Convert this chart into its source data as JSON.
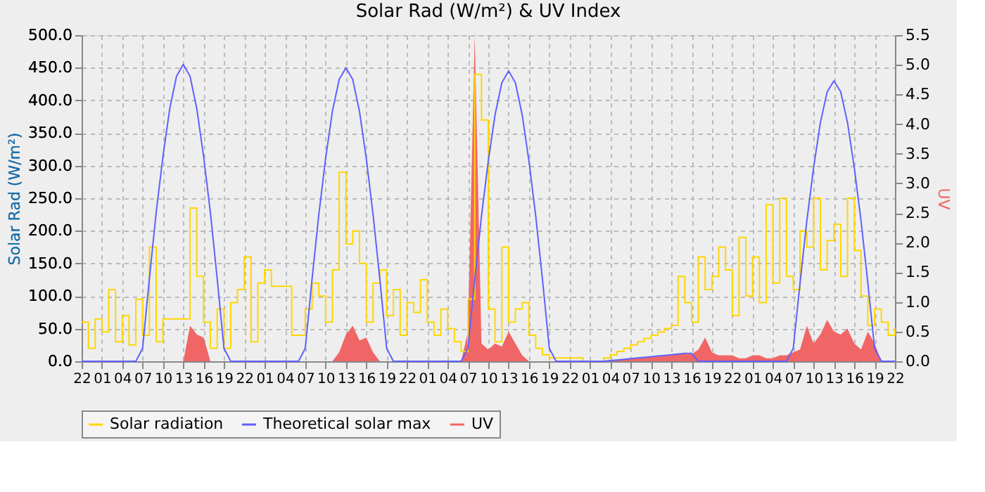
{
  "chart_data": {
    "type": "line",
    "title": "Solar Rad (W/m²) &  UV Index",
    "ylabel": "Solar Rad (W/m²)",
    "y2label": "UV",
    "categories": [
      "22",
      null,
      null,
      "01",
      null,
      null,
      "04",
      null,
      null,
      "07",
      null,
      null,
      "10",
      null,
      null,
      "13",
      null,
      null,
      "16",
      null,
      null,
      "19",
      null,
      null,
      "22",
      null,
      null,
      "01",
      null,
      null,
      "04",
      null,
      null,
      "07",
      null,
      null,
      "10",
      null,
      null,
      "13",
      null,
      null,
      "16",
      null,
      null,
      "19",
      null,
      null,
      "22",
      null,
      null,
      "01",
      null,
      null,
      "04",
      null,
      null,
      "07",
      null,
      null,
      "10",
      null,
      null,
      "13",
      null,
      null,
      "16",
      null,
      null,
      "19",
      null,
      null,
      "22",
      null,
      null,
      "01",
      null,
      null,
      "04",
      null,
      null,
      "07",
      null,
      null,
      "10",
      null,
      null,
      "13",
      null,
      null,
      "16",
      null,
      null,
      "19",
      null,
      null,
      "22",
      null,
      null,
      "01",
      null,
      null,
      "04",
      null,
      null,
      "07",
      null,
      null,
      "10",
      null,
      null,
      "13",
      null,
      null,
      "16",
      null,
      null,
      "19",
      null,
      null,
      "22"
    ],
    "ylim": [
      0,
      500
    ],
    "yticks": [
      {
        "value": 0,
        "label": "0.0"
      },
      {
        "value": 50,
        "label": "50.0"
      },
      {
        "value": 100,
        "label": "100.0"
      },
      {
        "value": 150,
        "label": "150.0"
      },
      {
        "value": 200,
        "label": "200.0"
      },
      {
        "value": 250,
        "label": "250.0"
      },
      {
        "value": 300,
        "label": "300.0"
      },
      {
        "value": 350,
        "label": "350.0"
      },
      {
        "value": 400,
        "label": "400.0"
      },
      {
        "value": 450,
        "label": "450.0"
      },
      {
        "value": 500,
        "label": "500.0"
      }
    ],
    "y2lim": [
      0,
      5.5
    ],
    "y2ticks": [
      {
        "value": 0,
        "label": "0.0"
      },
      {
        "value": 0.5,
        "label": "0.5"
      },
      {
        "value": 1,
        "label": "1.0"
      },
      {
        "value": 1.5,
        "label": "1.5"
      },
      {
        "value": 2,
        "label": "2.0"
      },
      {
        "value": 2.5,
        "label": "2.5"
      },
      {
        "value": 3,
        "label": "3.0"
      },
      {
        "value": 3.5,
        "label": "3.5"
      },
      {
        "value": 4,
        "label": "4.0"
      },
      {
        "value": 4.5,
        "label": "4.5"
      },
      {
        "value": 5,
        "label": "5.0"
      },
      {
        "value": 5.5,
        "label": "5.5"
      }
    ],
    "grid": true,
    "legend": "bottom",
    "series": [
      {
        "name": "Solar radiation",
        "type": "step",
        "color": "#ffd700",
        "values": [
          60,
          20,
          65,
          45,
          110,
          30,
          70,
          25,
          95,
          40,
          175,
          30,
          65,
          65,
          65,
          65,
          235,
          130,
          60,
          20,
          80,
          20,
          90,
          110,
          160,
          30,
          120,
          140,
          115,
          115,
          115,
          40,
          40,
          80,
          120,
          100,
          60,
          140,
          290,
          180,
          200,
          150,
          60,
          120,
          140,
          70,
          110,
          40,
          90,
          75,
          125,
          60,
          40,
          80,
          50,
          30,
          15,
          95,
          440,
          370,
          80,
          30,
          175,
          60,
          80,
          90,
          40,
          20,
          10,
          5,
          5,
          5,
          5,
          5,
          0,
          0,
          0,
          5,
          10,
          15,
          20,
          25,
          30,
          35,
          40,
          45,
          50,
          55,
          130,
          90,
          60,
          160,
          110,
          130,
          175,
          140,
          70,
          190,
          100,
          160,
          90,
          240,
          120,
          250,
          130,
          110,
          200,
          175,
          250,
          140,
          185,
          210,
          130,
          250,
          170,
          100,
          55,
          80,
          60,
          40,
          50
        ]
      },
      {
        "name": "Theoretical solar max",
        "type": "line",
        "color": "#6060ff",
        "values": [
          0,
          0,
          0,
          0,
          0,
          0,
          0,
          0,
          0,
          20,
          127,
          228,
          314,
          387,
          437,
          455,
          437,
          387,
          314,
          228,
          127,
          20,
          0,
          0,
          0,
          0,
          0,
          0,
          0,
          0,
          0,
          0,
          0,
          20,
          126,
          225,
          311,
          383,
          432,
          450,
          432,
          383,
          311,
          225,
          126,
          20,
          0,
          0,
          0,
          0,
          0,
          0,
          0,
          0,
          0,
          0,
          0,
          20,
          125,
          223,
          307,
          378,
          427,
          445,
          427,
          378,
          307,
          223,
          125,
          20,
          0,
          0,
          0,
          0,
          0,
          0,
          0,
          0,
          1,
          2,
          3,
          4,
          5,
          6,
          7,
          8,
          9,
          10,
          11,
          12,
          12,
          0,
          0,
          0,
          0,
          0,
          0,
          0,
          0,
          0,
          0,
          0,
          0,
          0,
          0,
          20,
          120,
          215,
          297,
          366,
          413,
          430,
          413,
          366,
          297,
          215,
          120,
          20,
          0,
          0,
          0
        ]
      },
      {
        "name": "UV",
        "type": "area",
        "axis": "y2",
        "color": "#f06666",
        "values": [
          0,
          0,
          0,
          0,
          0,
          0,
          0,
          0,
          0,
          0,
          0,
          0,
          0,
          0,
          0,
          0,
          0.6,
          0.45,
          0.4,
          0,
          0,
          0,
          0,
          0,
          0,
          0,
          0,
          0,
          0,
          0,
          0,
          0,
          0,
          0,
          0,
          0,
          0,
          0,
          0.15,
          0.45,
          0.6,
          0.35,
          0.4,
          0.15,
          0,
          0,
          0,
          0,
          0,
          0,
          0,
          0,
          0,
          0,
          0,
          0,
          0,
          0.5,
          5.5,
          0.3,
          0.2,
          0.3,
          0.25,
          0.5,
          0.3,
          0.1,
          0,
          0,
          0,
          0,
          0,
          0,
          0,
          0,
          0,
          0,
          0,
          0,
          0.02,
          0.02,
          0.04,
          0.04,
          0.06,
          0.06,
          0.08,
          0.08,
          0.1,
          0.1,
          0.12,
          0.12,
          0.12,
          0.2,
          0.4,
          0.15,
          0.1,
          0.1,
          0.1,
          0.05,
          0.05,
          0.1,
          0.1,
          0.05,
          0.05,
          0.1,
          0.1,
          0.15,
          0.2,
          0.6,
          0.3,
          0.45,
          0.7,
          0.5,
          0.45,
          0.55,
          0.3,
          0.2,
          0.5,
          0.3,
          0,
          0,
          0
        ]
      }
    ]
  }
}
